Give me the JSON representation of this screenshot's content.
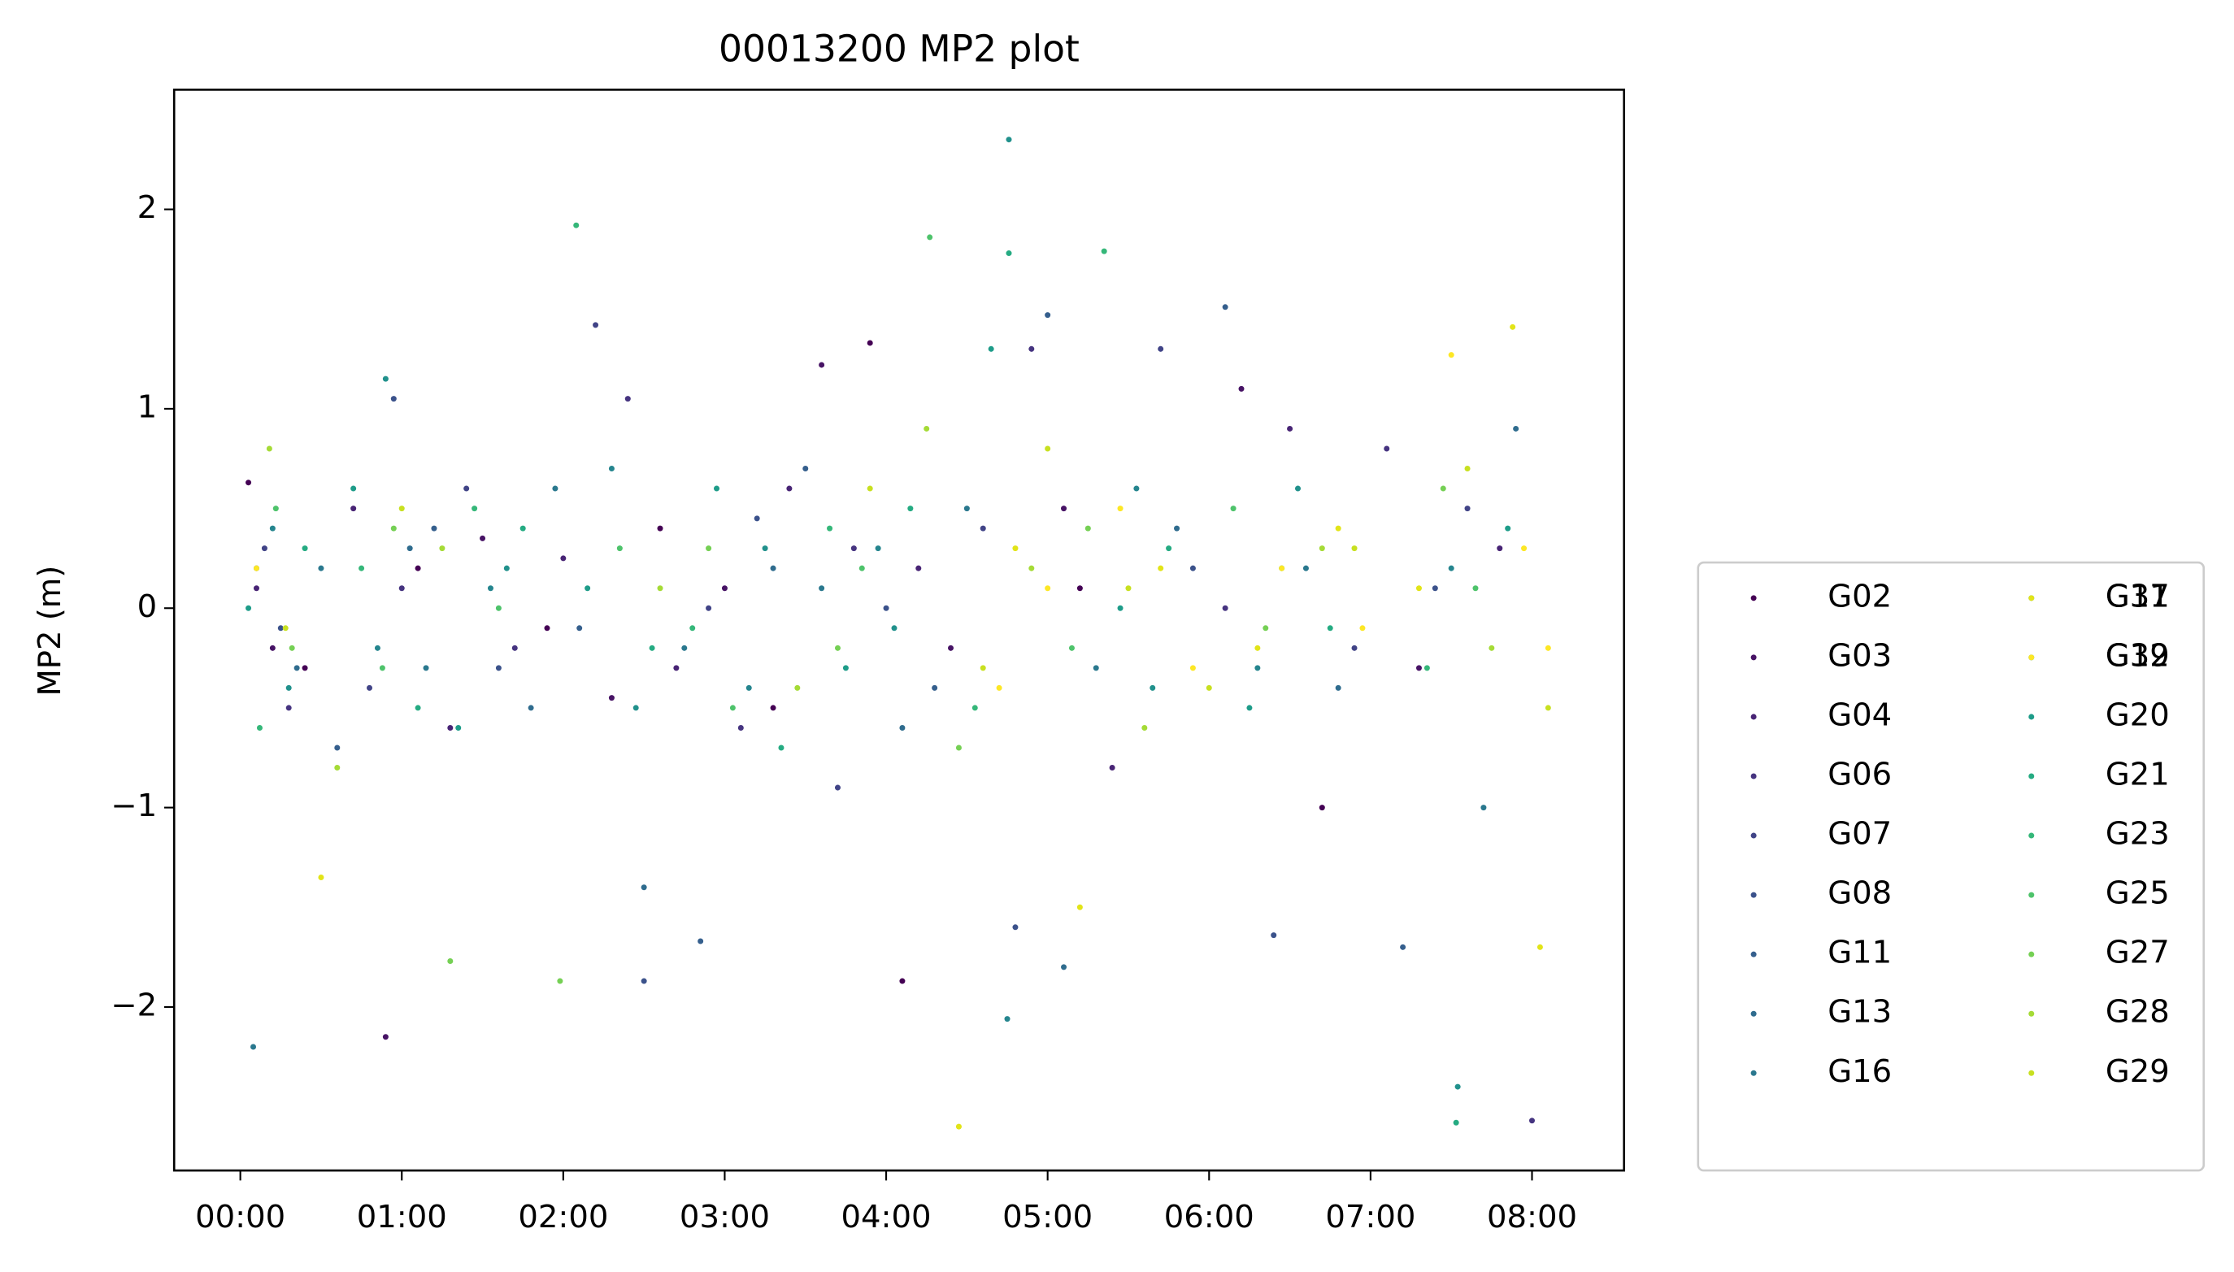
{
  "chart_data": {
    "type": "scatter",
    "title": "00013200 MP2 plot",
    "y_label": "MP2 (m)",
    "xlim": [
      -0.41,
      8.57
    ],
    "ylim": [
      -2.82,
      2.6
    ],
    "xticks": [
      {
        "value": 0,
        "label": "00:00"
      },
      {
        "value": 1,
        "label": "01:00"
      },
      {
        "value": 2,
        "label": "02:00"
      },
      {
        "value": 3,
        "label": "03:00"
      },
      {
        "value": 4,
        "label": "04:00"
      },
      {
        "value": 5,
        "label": "05:00"
      },
      {
        "value": 6,
        "label": "06:00"
      },
      {
        "value": 7,
        "label": "07:00"
      },
      {
        "value": 8,
        "label": "08:00"
      }
    ],
    "yticks": [
      {
        "value": -2,
        "label": "−2"
      },
      {
        "value": -1,
        "label": "−1"
      },
      0,
      1,
      2
    ],
    "legend": "outside-right",
    "series": [
      {
        "name": "G02",
        "color": "#440154",
        "x": [
          0.05,
          0.4,
          1.1,
          1.9,
          2.6,
          3.3,
          3.9,
          4.1,
          5.2,
          6.7
        ],
        "values": [
          0.63,
          -0.3,
          0.2,
          -0.1,
          0.4,
          -0.5,
          1.33,
          -1.87,
          0.1,
          -1.0
        ]
      },
      {
        "name": "G03",
        "color": "#471365",
        "x": [
          0.2,
          0.9,
          1.5,
          2.3,
          3.0,
          3.6,
          4.4,
          5.1,
          6.2,
          7.3
        ],
        "values": [
          -0.2,
          -2.15,
          0.35,
          -0.45,
          0.1,
          1.22,
          -0.2,
          0.5,
          1.1,
          -0.3
        ]
      },
      {
        "name": "G04",
        "color": "#482475",
        "x": [
          0.1,
          0.7,
          1.3,
          2.0,
          2.7,
          3.4,
          4.2,
          5.4,
          6.5,
          7.8
        ],
        "values": [
          0.1,
          0.5,
          -0.6,
          0.25,
          -0.3,
          0.6,
          0.2,
          -0.8,
          0.9,
          0.3
        ]
      },
      {
        "name": "G06",
        "color": "#463480",
        "x": [
          0.3,
          1.0,
          1.7,
          2.4,
          3.1,
          3.8,
          4.9,
          6.1,
          7.1,
          8.0
        ],
        "values": [
          -0.5,
          0.1,
          -0.2,
          1.05,
          -0.6,
          0.3,
          1.3,
          0.0,
          0.8,
          -2.57
        ]
      },
      {
        "name": "G07",
        "color": "#414487",
        "x": [
          0.15,
          0.8,
          1.4,
          2.2,
          2.9,
          3.7,
          4.6,
          5.7,
          6.9,
          7.6
        ],
        "values": [
          0.3,
          -0.4,
          0.6,
          1.42,
          0.0,
          -0.9,
          0.4,
          1.3,
          -0.2,
          0.5
        ]
      },
      {
        "name": "G08",
        "color": "#3b528b",
        "x": [
          0.25,
          0.95,
          1.6,
          2.5,
          3.2,
          4.0,
          4.8,
          5.9,
          6.4,
          7.4
        ],
        "values": [
          -0.1,
          1.05,
          -0.3,
          -1.87,
          0.45,
          0.0,
          -1.6,
          0.2,
          -1.64,
          0.1
        ]
      },
      {
        "name": "G11",
        "color": "#355f8d",
        "x": [
          0.1,
          0.6,
          1.2,
          2.1,
          2.85,
          3.5,
          4.3,
          5.0,
          6.1,
          7.2
        ],
        "values": [
          0.2,
          -0.7,
          0.4,
          -0.1,
          -1.67,
          0.7,
          -0.4,
          1.47,
          1.51,
          -1.7
        ]
      },
      {
        "name": "G13",
        "color": "#2f6c8e",
        "x": [
          0.35,
          1.05,
          1.8,
          2.5,
          3.3,
          4.1,
          5.1,
          5.8,
          6.8,
          7.9
        ],
        "values": [
          -0.3,
          0.3,
          -0.5,
          -1.4,
          0.2,
          -0.6,
          -1.8,
          0.4,
          -0.4,
          0.9
        ]
      },
      {
        "name": "G16",
        "color": "#2a788e",
        "x": [
          0.08,
          0.5,
          1.15,
          1.95,
          2.75,
          3.6,
          4.5,
          5.3,
          6.6,
          7.7
        ],
        "values": [
          -2.2,
          0.2,
          -0.3,
          0.6,
          -0.2,
          0.1,
          0.5,
          -0.3,
          0.2,
          -1.0
        ]
      },
      {
        "name": "G17",
        "color": "#25858e",
        "x": [
          0.2,
          0.85,
          1.55,
          2.3,
          3.15,
          3.95,
          4.75,
          5.55,
          6.3,
          7.5
        ],
        "values": [
          0.4,
          -0.2,
          0.1,
          0.7,
          -0.4,
          0.3,
          -2.06,
          0.6,
          -0.3,
          0.2
        ]
      },
      {
        "name": "G19",
        "color": "#21918c",
        "x": [
          0.3,
          0.9,
          1.65,
          2.45,
          3.25,
          4.05,
          4.76,
          5.65,
          6.55,
          7.54
        ],
        "values": [
          -0.4,
          1.15,
          0.2,
          -0.5,
          0.3,
          -0.1,
          2.35,
          -0.4,
          0.6,
          -2.4
        ]
      },
      {
        "name": "G20",
        "color": "#1e9c89",
        "x": [
          0.05,
          0.7,
          1.35,
          2.15,
          2.95,
          3.75,
          4.65,
          5.45,
          6.25,
          7.85
        ],
        "values": [
          0.0,
          0.6,
          -0.6,
          0.1,
          0.6,
          -0.3,
          1.3,
          0.0,
          -0.5,
          0.4
        ]
      },
      {
        "name": "G21",
        "color": "#25ab82",
        "x": [
          0.4,
          1.1,
          1.75,
          2.55,
          3.35,
          4.15,
          4.76,
          5.75,
          6.75,
          7.53
        ],
        "values": [
          0.3,
          -0.5,
          0.4,
          -0.2,
          -0.7,
          0.5,
          1.78,
          0.3,
          -0.1,
          -2.58
        ]
      },
      {
        "name": "G23",
        "color": "#35b779",
        "x": [
          0.12,
          0.75,
          1.45,
          2.08,
          2.8,
          3.65,
          4.55,
          5.35,
          6.45,
          7.35
        ],
        "values": [
          -0.6,
          0.2,
          0.5,
          1.92,
          -0.1,
          0.4,
          -0.5,
          1.79,
          0.2,
          -0.3
        ]
      },
      {
        "name": "G25",
        "color": "#4ec36b",
        "x": [
          0.22,
          0.88,
          1.6,
          2.35,
          3.05,
          3.85,
          4.27,
          5.15,
          6.15,
          7.65
        ],
        "values": [
          0.5,
          -0.3,
          0.0,
          0.3,
          -0.5,
          0.2,
          1.86,
          -0.2,
          0.5,
          0.1
        ]
      },
      {
        "name": "G27",
        "color": "#75d054",
        "x": [
          0.32,
          0.95,
          1.3,
          1.98,
          2.9,
          3.7,
          4.45,
          5.25,
          6.35,
          7.45
        ],
        "values": [
          -0.2,
          0.4,
          -1.77,
          -1.87,
          0.3,
          -0.2,
          -0.7,
          0.4,
          -0.1,
          0.6
        ]
      },
      {
        "name": "G28",
        "color": "#a5db36",
        "x": [
          0.18,
          0.6,
          1.25,
          2.6,
          3.45,
          4.25,
          4.9,
          5.6,
          6.7,
          7.75
        ],
        "values": [
          0.8,
          -0.8,
          0.3,
          0.1,
          -0.4,
          0.9,
          0.2,
          -0.6,
          0.3,
          -0.2
        ]
      },
      {
        "name": "G29",
        "color": "#c8e020",
        "x": [
          0.28,
          1.0,
          3.9,
          4.6,
          5.0,
          5.5,
          6.0,
          6.9,
          7.6,
          8.1
        ],
        "values": [
          -0.1,
          0.5,
          0.6,
          -0.3,
          0.8,
          0.1,
          -0.4,
          0.3,
          0.7,
          -0.5
        ]
      },
      {
        "name": "G31",
        "color": "#e2e418",
        "x": [
          0.5,
          4.45,
          4.8,
          5.2,
          5.7,
          6.3,
          6.8,
          7.3,
          7.88,
          8.05
        ],
        "values": [
          -1.35,
          -2.6,
          0.3,
          -1.5,
          0.2,
          -0.2,
          0.4,
          0.1,
          1.41,
          -1.7
        ]
      },
      {
        "name": "G32",
        "color": "#fde725",
        "x": [
          0.1,
          4.7,
          5.0,
          5.45,
          5.9,
          6.45,
          6.95,
          7.5,
          7.95,
          8.1
        ],
        "values": [
          0.2,
          -0.4,
          0.1,
          0.5,
          -0.3,
          0.2,
          -0.1,
          1.27,
          0.3,
          -0.2
        ]
      }
    ]
  }
}
